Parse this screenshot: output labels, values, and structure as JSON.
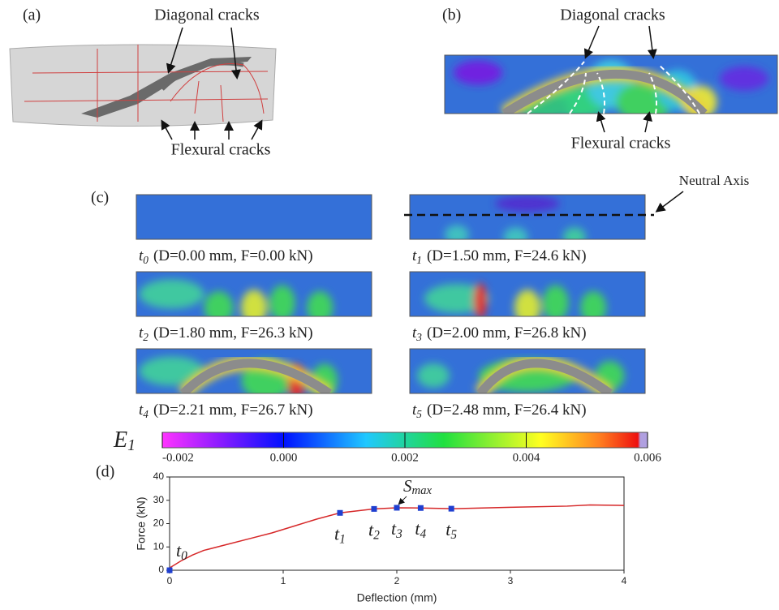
{
  "panels": {
    "a": {
      "label": "(a)",
      "top_note": "Diagonal cracks",
      "bottom_note": "Flexural cracks"
    },
    "b": {
      "label": "(b)",
      "top_note": "Diagonal cracks",
      "bottom_note": "Flexural cracks"
    },
    "c": {
      "label": "(c)",
      "note": "Neutral Axis",
      "captions": [
        {
          "prefix": "t",
          "sub": "0",
          "rest": "(D=0.00 mm, F=0.00 kN)"
        },
        {
          "prefix": "t",
          "sub": "1",
          "rest": "(D=1.50 mm, F=24.6 kN)"
        },
        {
          "prefix": "t",
          "sub": "2",
          "rest": "(D=1.80 mm, F=26.3 kN)"
        },
        {
          "prefix": "t",
          "sub": "3",
          "rest": "(D=2.00 mm, F=26.8 kN)"
        },
        {
          "prefix": "t",
          "sub": "4",
          "rest": "(D=2.21 mm, F=26.7 kN)"
        },
        {
          "prefix": "t",
          "sub": "5",
          "rest": "(D=2.48 mm, F=26.4 kN)"
        }
      ]
    },
    "d": {
      "label": "(d)"
    }
  },
  "colorbar": {
    "symbol": "E",
    "subscript": "1",
    "lim": [
      -0.002,
      0.006
    ],
    "ticks": [
      -0.002,
      {
        "value": 0,
        "label": "0.000"
      },
      0.002,
      0.004,
      0.006
    ]
  },
  "chart_data": {
    "type": "line",
    "x_label": "Deflection (mm)",
    "y_label": "Force (kN)",
    "xlim": [
      0,
      4
    ],
    "xticks": [
      0,
      1,
      2,
      3,
      4
    ],
    "ylim": [
      0,
      40
    ],
    "yticks": [
      0,
      10,
      20,
      30,
      40
    ],
    "series": [
      {
        "color": "#d62728",
        "x": [
          0,
          0.1,
          0.2,
          0.3,
          0.5,
          0.7,
          0.9,
          1.1,
          1.3,
          1.5,
          1.8,
          2.0,
          2.2,
          2.5,
          3.0,
          3.5,
          3.7,
          4.0
        ],
        "values": [
          1,
          4,
          6.5,
          8.5,
          11,
          13.5,
          16,
          19,
          22,
          24.6,
          26.3,
          26.8,
          26.7,
          26.4,
          27,
          27.5,
          28,
          27.8
        ]
      },
      {
        "color": "#1f3fd0",
        "x": [
          0,
          1.5,
          1.8,
          2.0,
          2.21,
          2.48
        ],
        "values": [
          0,
          24.6,
          26.3,
          26.8,
          26.7,
          26.4
        ],
        "labels": [
          {
            "text": "t",
            "sub": "0"
          },
          {
            "text": "t",
            "sub": "1"
          },
          {
            "text": "t",
            "sub": "2"
          },
          {
            "text": "t",
            "sub": "3"
          },
          {
            "text": "t",
            "sub": "4"
          },
          {
            "text": "t",
            "sub": "5"
          }
        ]
      }
    ],
    "annotation": {
      "text": "S",
      "sub": "max"
    }
  }
}
